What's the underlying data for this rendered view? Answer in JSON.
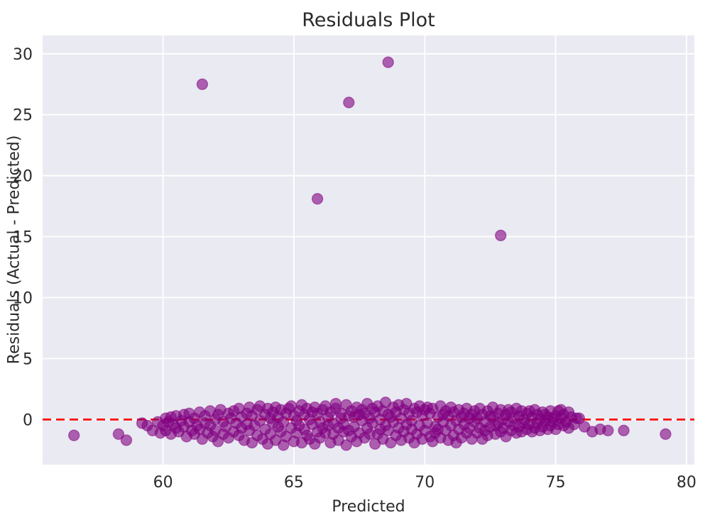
{
  "chart_data": {
    "type": "scatter",
    "title": "Residuals Plot",
    "xlabel": "Predicted",
    "ylabel": "Residuals (Actual - Predicted)",
    "xlim": [
      55.4,
      80.3
    ],
    "ylim": [
      -3.7,
      31.5
    ],
    "xticks": [
      60,
      65,
      70,
      75,
      80
    ],
    "yticks": [
      0,
      5,
      10,
      15,
      20,
      25,
      30
    ],
    "grid": true,
    "legend": "none",
    "style": {
      "plot_background": "#eaeaf2",
      "figure_background": "#ffffff",
      "gridline_color": "#ffffff",
      "tick_label_color": "#2b2b2b",
      "marker_color": "#800080",
      "marker_opacity": 0.6,
      "marker_radius": 7.5,
      "zero_line_color": "#ff0000"
    },
    "reference_line": {
      "y": 0,
      "color": "#ff0000",
      "line_style": "dashed"
    },
    "outliers": [
      [
        61.5,
        27.5
      ],
      [
        68.6,
        29.3
      ],
      [
        67.1,
        26.0
      ],
      [
        65.9,
        18.1
      ],
      [
        72.9,
        15.1
      ]
    ],
    "points": [
      [
        61.5,
        27.5
      ],
      [
        68.6,
        29.3
      ],
      [
        67.1,
        26.0
      ],
      [
        65.9,
        18.1
      ],
      [
        72.9,
        15.1
      ],
      [
        56.6,
        -1.3
      ],
      [
        58.3,
        -1.2
      ],
      [
        58.6,
        -1.7
      ],
      [
        59.2,
        -0.3
      ],
      [
        59.4,
        -0.5
      ],
      [
        59.6,
        -0.9
      ],
      [
        59.8,
        -0.2
      ],
      [
        59.9,
        -1.1
      ],
      [
        60.0,
        -0.5
      ],
      [
        60.1,
        0.1
      ],
      [
        60.1,
        -0.9
      ],
      [
        60.2,
        -0.2
      ],
      [
        60.3,
        0.2
      ],
      [
        60.3,
        -1.2
      ],
      [
        60.4,
        -0.4
      ],
      [
        60.5,
        -0.7
      ],
      [
        60.5,
        0.3
      ],
      [
        60.6,
        -1.0
      ],
      [
        60.7,
        -0.1
      ],
      [
        60.8,
        0.4
      ],
      [
        60.8,
        -0.6
      ],
      [
        60.9,
        -1.4
      ],
      [
        61.0,
        -0.2
      ],
      [
        61.0,
        0.5
      ],
      [
        61.1,
        -0.9
      ],
      [
        61.2,
        -1.2
      ],
      [
        61.2,
        0.1
      ],
      [
        61.3,
        -0.5
      ],
      [
        61.4,
        0.6
      ],
      [
        61.4,
        -0.8
      ],
      [
        61.5,
        -1.6
      ],
      [
        61.6,
        -0.3
      ],
      [
        61.6,
        0.3
      ],
      [
        61.7,
        -1.1
      ],
      [
        61.8,
        0.7
      ],
      [
        61.8,
        -0.5
      ],
      [
        61.9,
        -1.4
      ],
      [
        62.0,
        0.0
      ],
      [
        62.0,
        -0.9
      ],
      [
        62.1,
        0.4
      ],
      [
        62.1,
        -1.8
      ],
      [
        62.2,
        0.8
      ],
      [
        62.3,
        -0.2
      ],
      [
        62.3,
        -1.2
      ],
      [
        62.4,
        -0.6
      ],
      [
        62.5,
        0.5
      ],
      [
        62.5,
        -1.5
      ],
      [
        62.6,
        0.1
      ],
      [
        62.7,
        -1.0
      ],
      [
        62.7,
        0.7
      ],
      [
        62.8,
        -0.3
      ],
      [
        62.9,
        0.9
      ],
      [
        62.9,
        -1.3
      ],
      [
        63.0,
        0.2
      ],
      [
        63.0,
        -0.7
      ],
      [
        63.1,
        -1.7
      ],
      [
        63.2,
        0.5
      ],
      [
        63.2,
        -0.4
      ],
      [
        63.3,
        1.0
      ],
      [
        63.3,
        -0.9
      ],
      [
        63.4,
        0.3
      ],
      [
        63.4,
        -1.9
      ],
      [
        63.5,
        -0.5
      ],
      [
        63.6,
        0.8
      ],
      [
        63.6,
        -1.3
      ],
      [
        63.7,
        1.1
      ],
      [
        63.7,
        -0.1
      ],
      [
        63.8,
        -1.6
      ],
      [
        63.9,
        0.4
      ],
      [
        63.9,
        -0.8
      ],
      [
        64.0,
        0.9
      ],
      [
        64.0,
        -2.0
      ],
      [
        64.1,
        0.1
      ],
      [
        64.1,
        -1.2
      ],
      [
        64.2,
        0.6
      ],
      [
        64.2,
        -0.3
      ],
      [
        64.3,
        1.0
      ],
      [
        64.3,
        -1.7
      ],
      [
        64.4,
        0.2
      ],
      [
        64.4,
        -0.6
      ],
      [
        64.5,
        -1.0
      ],
      [
        64.5,
        0.8
      ],
      [
        64.6,
        -0.2
      ],
      [
        64.6,
        -2.1
      ],
      [
        64.7,
        0.5
      ],
      [
        64.7,
        -1.4
      ],
      [
        64.8,
        0.9
      ],
      [
        64.9,
        -0.7
      ],
      [
        64.9,
        1.1
      ],
      [
        65.0,
        -1.8
      ],
      [
        65.0,
        0.3
      ],
      [
        65.1,
        -0.1
      ],
      [
        65.1,
        -1.1
      ],
      [
        65.2,
        0.7
      ],
      [
        65.2,
        -0.5
      ],
      [
        65.3,
        1.2
      ],
      [
        65.3,
        -1.9
      ],
      [
        65.4,
        0.4
      ],
      [
        65.4,
        -0.8
      ],
      [
        65.5,
        -1.3
      ],
      [
        65.5,
        0.9
      ],
      [
        65.6,
        0.0
      ],
      [
        65.6,
        -1.6
      ],
      [
        65.7,
        0.6
      ],
      [
        65.7,
        -0.4
      ],
      [
        65.8,
        1.0
      ],
      [
        65.8,
        -2.0
      ],
      [
        65.9,
        0.5
      ],
      [
        65.9,
        -1.0
      ],
      [
        66.0,
        -0.2
      ],
      [
        66.0,
        -1.5
      ],
      [
        66.1,
        0.8
      ],
      [
        66.1,
        -0.7
      ],
      [
        66.2,
        1.1
      ],
      [
        66.2,
        -1.1
      ],
      [
        66.3,
        0.2
      ],
      [
        66.3,
        -0.5
      ],
      [
        66.4,
        -1.9
      ],
      [
        66.4,
        0.6
      ],
      [
        66.5,
        -0.3
      ],
      [
        66.5,
        -1.2
      ],
      [
        66.6,
        0.9
      ],
      [
        66.6,
        1.3
      ],
      [
        66.7,
        -0.7
      ],
      [
        66.7,
        -1.7
      ],
      [
        66.8,
        0.1
      ],
      [
        66.8,
        0.5
      ],
      [
        66.9,
        -1.0
      ],
      [
        66.9,
        -0.4
      ],
      [
        67.0,
        1.2
      ],
      [
        67.0,
        -2.1
      ],
      [
        67.1,
        -0.9
      ],
      [
        67.1,
        0.3
      ],
      [
        67.2,
        0.7
      ],
      [
        67.2,
        -1.4
      ],
      [
        67.3,
        0.2
      ],
      [
        67.3,
        -0.6
      ],
      [
        67.4,
        1.0
      ],
      [
        67.4,
        -1.8
      ],
      [
        67.5,
        0.4
      ],
      [
        67.5,
        -1.1
      ],
      [
        67.6,
        0.8
      ],
      [
        67.6,
        -0.1
      ],
      [
        67.7,
        -1.5
      ],
      [
        67.7,
        0.5
      ],
      [
        67.8,
        1.3
      ],
      [
        67.8,
        -0.7
      ],
      [
        67.9,
        -1.2
      ],
      [
        67.9,
        0.1
      ],
      [
        68.0,
        -0.3
      ],
      [
        68.0,
        0.9
      ],
      [
        68.1,
        -2.0
      ],
      [
        68.1,
        0.6
      ],
      [
        68.2,
        -1.2
      ],
      [
        68.2,
        1.1
      ],
      [
        68.3,
        0.0
      ],
      [
        68.3,
        -0.8
      ],
      [
        68.4,
        0.7
      ],
      [
        68.4,
        -1.6
      ],
      [
        68.5,
        -0.5
      ],
      [
        68.5,
        1.4
      ],
      [
        68.6,
        -0.9
      ],
      [
        68.6,
        0.4
      ],
      [
        68.7,
        -1.9
      ],
      [
        68.7,
        0.2
      ],
      [
        68.8,
        1.0
      ],
      [
        68.8,
        -0.2
      ],
      [
        68.9,
        -1.3
      ],
      [
        68.9,
        0.6
      ],
      [
        69.0,
        -0.7
      ],
      [
        69.0,
        1.2
      ],
      [
        69.1,
        -1.7
      ],
      [
        69.1,
        0.1
      ],
      [
        69.2,
        0.8
      ],
      [
        69.2,
        -1.0
      ],
      [
        69.3,
        -0.4
      ],
      [
        69.3,
        1.3
      ],
      [
        69.4,
        -1.5
      ],
      [
        69.4,
        0.5
      ],
      [
        69.5,
        -0.8
      ],
      [
        69.5,
        -0.1
      ],
      [
        69.6,
        0.9
      ],
      [
        69.6,
        -1.9
      ],
      [
        69.7,
        0.6
      ],
      [
        69.7,
        -1.2
      ],
      [
        69.8,
        1.1
      ],
      [
        69.8,
        -0.5
      ],
      [
        69.9,
        -1.6
      ],
      [
        69.9,
        0.3
      ],
      [
        70.0,
        -0.9
      ],
      [
        70.0,
        0.8
      ],
      [
        70.1,
        -0.3
      ],
      [
        70.1,
        1.0
      ],
      [
        70.2,
        -1.4
      ],
      [
        70.2,
        0.5
      ],
      [
        70.3,
        -1.8
      ],
      [
        70.3,
        0.9
      ],
      [
        70.4,
        -0.6
      ],
      [
        70.4,
        -1.1
      ],
      [
        70.5,
        0.2
      ],
      [
        70.5,
        -0.8
      ],
      [
        70.6,
        1.1
      ],
      [
        70.6,
        -1.5
      ],
      [
        70.7,
        0.4
      ],
      [
        70.7,
        -0.2
      ],
      [
        70.8,
        -0.9
      ],
      [
        70.8,
        0.7
      ],
      [
        70.9,
        -1.7
      ],
      [
        70.9,
        0.3
      ],
      [
        71.0,
        -0.5
      ],
      [
        71.0,
        1.0
      ],
      [
        71.1,
        -1.3
      ],
      [
        71.1,
        0.6
      ],
      [
        71.2,
        -0.1
      ],
      [
        71.2,
        -1.9
      ],
      [
        71.3,
        0.8
      ],
      [
        71.3,
        -0.8
      ],
      [
        71.4,
        0.2
      ],
      [
        71.4,
        -1.5
      ],
      [
        71.5,
        0.5
      ],
      [
        71.5,
        -0.4
      ],
      [
        71.6,
        0.9
      ],
      [
        71.6,
        -1.1
      ],
      [
        71.7,
        0.1
      ],
      [
        71.7,
        -0.7
      ],
      [
        71.8,
        -1.6
      ],
      [
        71.8,
        0.4
      ],
      [
        71.9,
        -0.2
      ],
      [
        71.9,
        0.7
      ],
      [
        72.0,
        -1.1
      ],
      [
        72.0,
        0.1
      ],
      [
        72.1,
        -0.7
      ],
      [
        72.1,
        0.9
      ],
      [
        72.2,
        -1.6
      ],
      [
        72.2,
        0.4
      ],
      [
        72.3,
        -0.2
      ],
      [
        72.3,
        -0.9
      ],
      [
        72.4,
        0.7
      ],
      [
        72.4,
        -1.3
      ],
      [
        72.5,
        0.3
      ],
      [
        72.5,
        -0.6
      ],
      [
        72.6,
        1.0
      ],
      [
        72.6,
        0.2
      ],
      [
        72.7,
        -1.2
      ],
      [
        72.7,
        -0.5
      ],
      [
        72.8,
        0.5
      ],
      [
        72.8,
        -0.3
      ],
      [
        72.9,
        0.8
      ],
      [
        72.9,
        -1.0
      ],
      [
        73.0,
        0.0
      ],
      [
        73.0,
        -0.7
      ],
      [
        73.1,
        0.4
      ],
      [
        73.1,
        -1.4
      ],
      [
        73.2,
        0.8
      ],
      [
        73.2,
        -0.2
      ],
      [
        73.3,
        -0.9
      ],
      [
        73.3,
        0.6
      ],
      [
        73.4,
        -0.5
      ],
      [
        73.4,
        0.1
      ],
      [
        73.5,
        -1.1
      ],
      [
        73.5,
        0.9
      ],
      [
        73.6,
        -0.6
      ],
      [
        73.6,
        0.3
      ],
      [
        73.7,
        -1.0
      ],
      [
        73.7,
        0.7
      ],
      [
        73.8,
        -0.3
      ],
      [
        73.8,
        0.0
      ],
      [
        73.9,
        -0.8
      ],
      [
        73.9,
        0.5
      ],
      [
        74.0,
        -0.4
      ],
      [
        74.0,
        0.7
      ],
      [
        74.1,
        -1.0
      ],
      [
        74.1,
        0.2
      ],
      [
        74.2,
        -0.7
      ],
      [
        74.2,
        0.8
      ],
      [
        74.3,
        -0.3
      ],
      [
        74.3,
        0.4
      ],
      [
        74.4,
        -0.9
      ],
      [
        74.4,
        0.0
      ],
      [
        74.5,
        0.6
      ],
      [
        74.5,
        -0.6
      ],
      [
        74.6,
        -0.1
      ],
      [
        74.6,
        0.4
      ],
      [
        74.7,
        -0.8
      ],
      [
        74.7,
        0.2
      ],
      [
        74.8,
        0.7
      ],
      [
        74.8,
        -0.5
      ],
      [
        74.9,
        0.1
      ],
      [
        74.9,
        -0.2
      ],
      [
        75.0,
        0.3
      ],
      [
        75.0,
        -0.8
      ],
      [
        75.1,
        0.7
      ],
      [
        75.1,
        -0.4
      ],
      [
        75.2,
        0.1
      ],
      [
        75.2,
        0.8
      ],
      [
        75.3,
        -0.5
      ],
      [
        75.3,
        0.4
      ],
      [
        75.4,
        -0.2
      ],
      [
        75.5,
        0.6
      ],
      [
        75.5,
        -0.7
      ],
      [
        75.6,
        0.2
      ],
      [
        75.7,
        -0.4
      ],
      [
        75.8,
        0.1
      ],
      [
        75.9,
        0.1
      ],
      [
        76.1,
        -0.6
      ],
      [
        76.4,
        -1.0
      ],
      [
        76.7,
        -0.8
      ],
      [
        77.0,
        -0.9
      ],
      [
        77.6,
        -0.9
      ],
      [
        79.2,
        -1.2
      ]
    ]
  }
}
